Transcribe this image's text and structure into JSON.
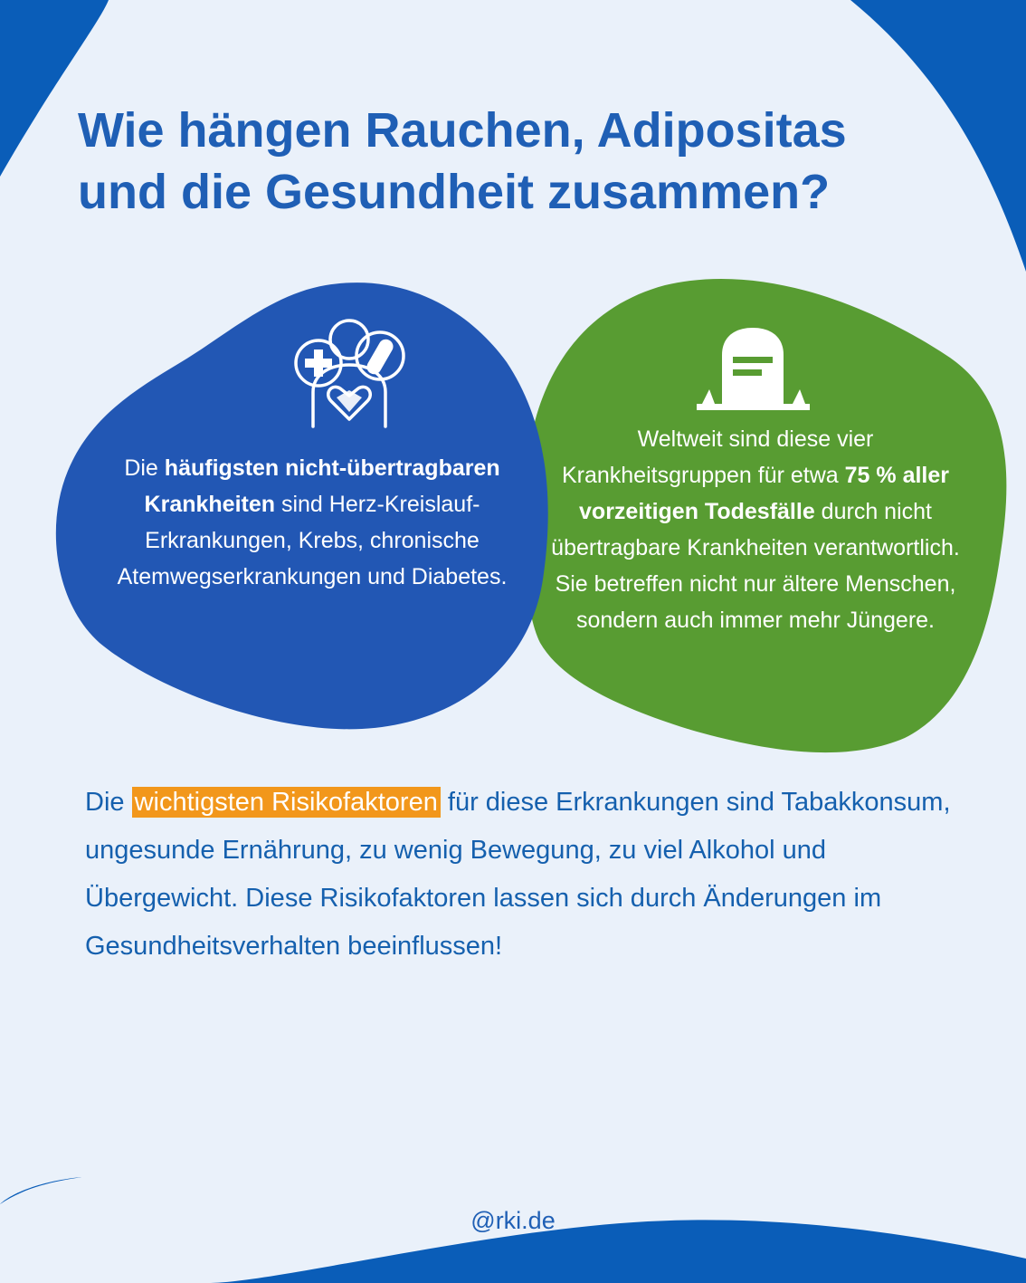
{
  "title": {
    "line1": "Wie hängen Rauchen, Adipositas",
    "line2": "und die Gesundheit zusammen?"
  },
  "left_blob": {
    "icon": "person-heart-medical-icon",
    "text_pre": "Die ",
    "text_bold": "häufigsten nicht-übertragbaren Krankheiten",
    "text_post": " sind Herz-Kreislauf-Erkrankungen, Krebs, chronische Atemwegserkrankungen und Diabetes."
  },
  "right_blob": {
    "icon": "gravestone-icon",
    "text_pre": "Weltweit sind diese vier Krankheitsgruppen für etwa ",
    "text_bold": "75 % aller vorzeitigen Todesfälle",
    "text_post": " durch nicht übertragbare Krankheiten verantwortlich. Sie betreffen nicht nur ältere Menschen, sondern auch immer mehr Jüngere."
  },
  "risk_text": {
    "pre": "Die ",
    "highlight": "wichtigsten Risikofaktoren",
    "post": " für diese Erkrankungen sind Tabakkonsum, ungesunde Ernährung, zu wenig Bewegung, zu viel Alkohol und Übergewicht. Diese Risikofaktoren lassen sich durch Änderungen im Gesundheitsverhalten beeinflussen!"
  },
  "footer": "@rki.de",
  "colors": {
    "dark_blue": "#0a5db8",
    "pale_background": "#eaf1fa",
    "blob_blue": "#2257b4",
    "blob_green": "#589c32",
    "highlight_orange": "#f2971b"
  }
}
